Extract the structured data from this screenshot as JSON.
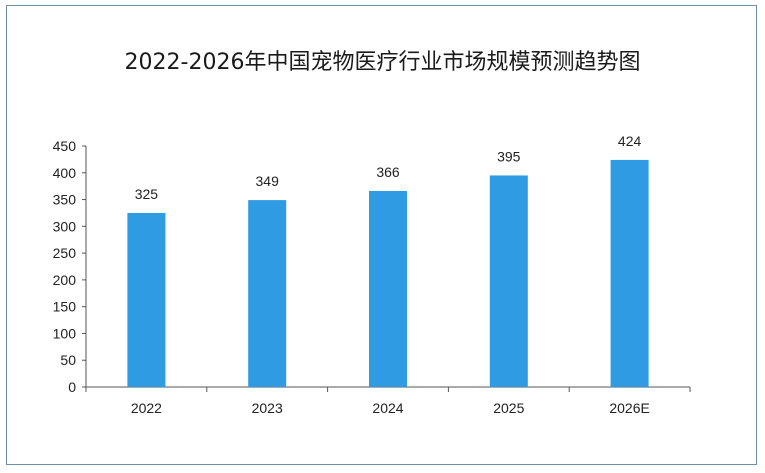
{
  "chart_data": {
    "type": "bar",
    "title": "2022-2026年中国宠物医疗行业市场规模预测趋势图",
    "categories": [
      "2022",
      "2023",
      "2024",
      "2025",
      "2026E"
    ],
    "values": [
      325,
      349,
      366,
      395,
      424
    ],
    "ylim": [
      0,
      450
    ],
    "yticks": [
      0,
      50,
      100,
      150,
      200,
      250,
      300,
      350,
      400,
      450
    ],
    "bar_color": "#2f9be3",
    "grid": false,
    "legend": "none"
  }
}
